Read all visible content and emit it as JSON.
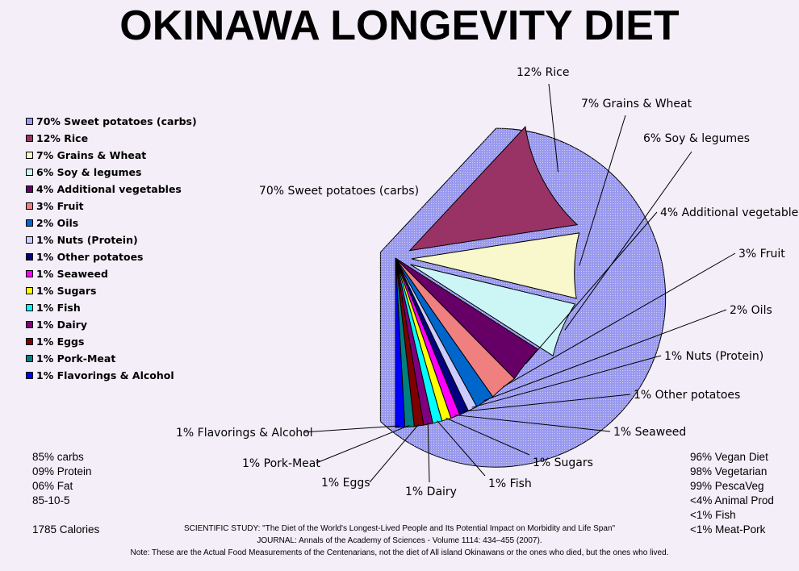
{
  "title": "OKINAWA LONGEVITY DIET",
  "chart_data": {
    "type": "pie",
    "title": "OKINAWA LONGEVITY DIET",
    "slices": [
      {
        "label": "70% Sweet potatoes (carbs)",
        "value": 70,
        "color": "#9999ee"
      },
      {
        "label": "12% Rice",
        "value": 12,
        "color": "#993366"
      },
      {
        "label": "7% Grains & Wheat",
        "value": 7,
        "color": "#f8f8cc"
      },
      {
        "label": "6% Soy & legumes",
        "value": 6,
        "color": "#ccf6f6"
      },
      {
        "label": "4% Additional vegetables",
        "value": 4,
        "color": "#660066"
      },
      {
        "label": "3% Fruit",
        "value": 3,
        "color": "#f08080"
      },
      {
        "label": "2% Oils",
        "value": 2,
        "color": "#0066cc"
      },
      {
        "label": "1% Nuts (Protein)",
        "value": 1,
        "color": "#ccccff"
      },
      {
        "label": "1% Other potatoes",
        "value": 1,
        "color": "#000080"
      },
      {
        "label": "1% Seaweed",
        "value": 1,
        "color": "#ff00ff"
      },
      {
        "label": "1% Sugars",
        "value": 1,
        "color": "#ffff00"
      },
      {
        "label": "1% Fish",
        "value": 1,
        "color": "#00ffff"
      },
      {
        "label": "1% Dairy",
        "value": 1,
        "color": "#800080"
      },
      {
        "label": "1% Eggs",
        "value": 1,
        "color": "#800000"
      },
      {
        "label": "1% Pork-Meat",
        "value": 1,
        "color": "#008080"
      },
      {
        "label": "1% Flavorings & Alcohol",
        "value": 1,
        "color": "#0000ff"
      }
    ],
    "legend_position": "left"
  },
  "macros": [
    "85% carbs",
    "09% Protein",
    "06% Fat",
    "85-10-5"
  ],
  "calories": "1785 Calories",
  "diet_stats": [
    "96% Vegan Diet",
    "98% Vegetarian",
    "99% PescaVeg",
    "<4% Animal Prod",
    "<1% Fish",
    "<1% Meat-Pork"
  ],
  "footer": {
    "study": "SCIENTIFIC STUDY: \"The Diet of the World's Longest-Lived People and Its Potential Impact on Morbidity and Life Span\"",
    "journal": "JOURNAL: Annals of the Academy of Sciences - Volume 1114: 434–455 (2007).",
    "note": "Note: These are the Actual Food Measurements of the Centenarians, not the diet of All island Okinawans or the ones who died, but the ones who lived."
  }
}
